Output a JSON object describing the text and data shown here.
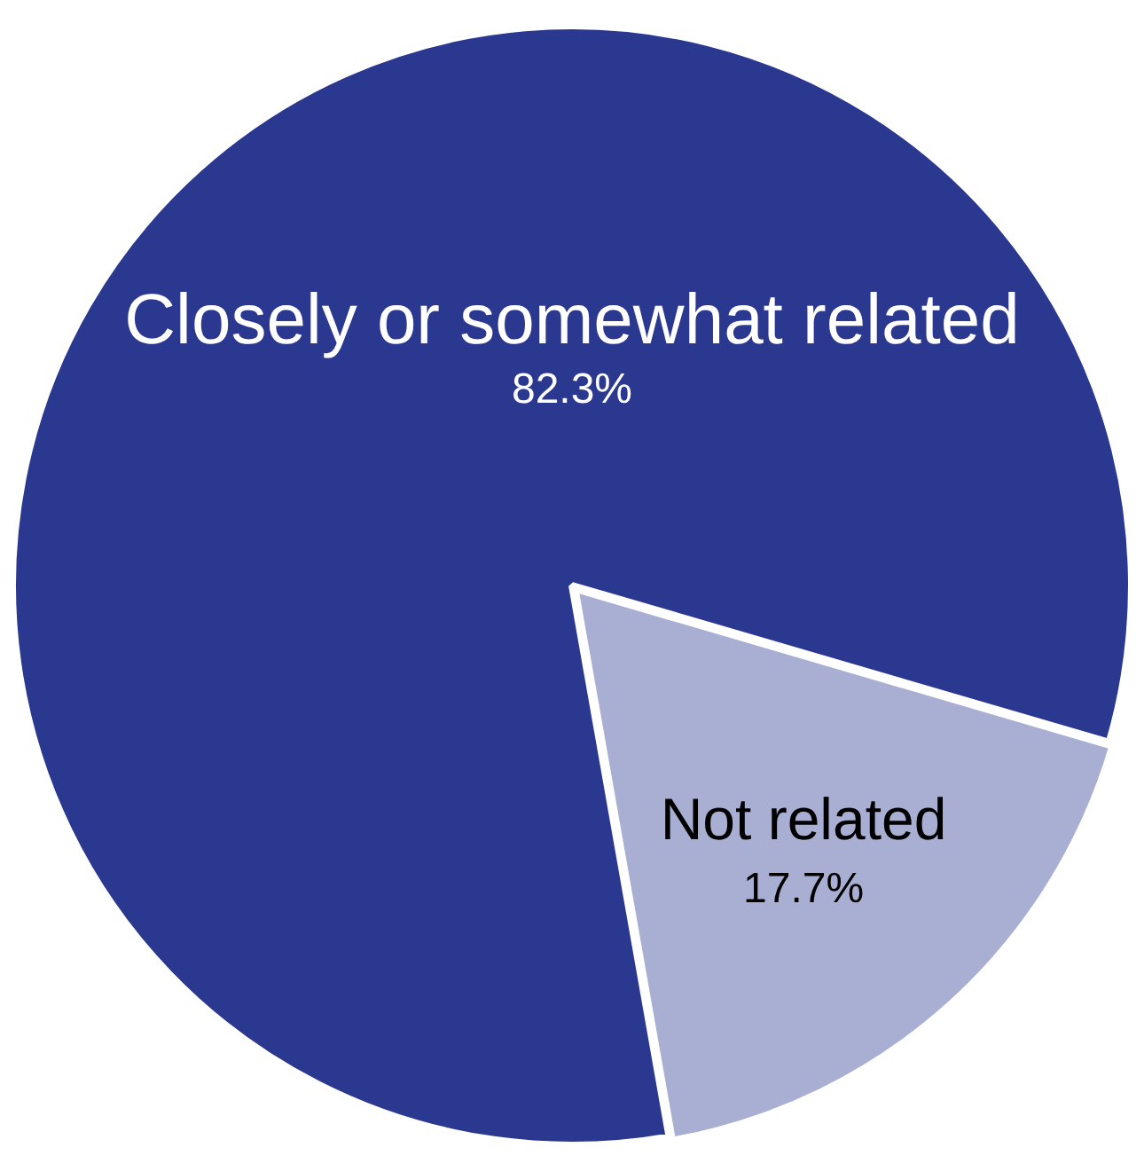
{
  "chart_data": {
    "type": "pie",
    "categories": [
      "Closely or somewhat related",
      "Not related"
    ],
    "values": [
      82.3,
      17.7
    ],
    "value_labels": [
      "82.3%",
      "17.7%"
    ],
    "colors": [
      "#2b388f",
      "#a9aed3"
    ],
    "legend": false
  }
}
